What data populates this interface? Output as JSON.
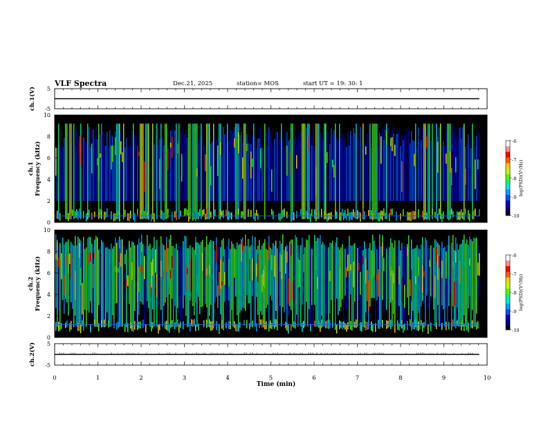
{
  "header": {
    "title": "VLF Spectra",
    "date": "Dec.21, 2025",
    "station": "station= MOS",
    "start": "start  UT  =    19: 30: 1"
  },
  "chart_data": {
    "type": "heatmap",
    "xlabel": "Time  (min)",
    "xlim": [
      0,
      10
    ],
    "x_ticks": [
      "0",
      "1",
      "2",
      "3",
      "4",
      "5",
      "6",
      "7",
      "8",
      "9",
      "10"
    ],
    "data_end_min": 9.82,
    "panels": [
      {
        "id": "ch1v",
        "kind": "waveform",
        "ylabel": "ch.1(V)",
        "y_ticks": [
          "5",
          "-5"
        ],
        "ylim": [
          -5,
          5
        ],
        "level": 0
      },
      {
        "id": "ch1",
        "kind": "spectrogram",
        "ylabel": "ch.1\nFrequency  (kHz)",
        "ylim": [
          0,
          10
        ],
        "y_ticks": [
          "0",
          "2",
          "4",
          "6",
          "8",
          "10"
        ],
        "seed": 7,
        "style": "sparse",
        "colorbar": {
          "label": "log(PSD)(V²/Hz)",
          "ticks": [
            "-6",
            "-7",
            "-8",
            "-9",
            "-10"
          ],
          "range": [
            -10,
            -6
          ]
        }
      },
      {
        "id": "ch2",
        "kind": "spectrogram",
        "ylabel": "ch.2\nFrequency  (kHz)",
        "ylim": [
          0,
          10
        ],
        "y_ticks": [
          "0",
          "2",
          "4",
          "6",
          "8",
          "10"
        ],
        "seed": 19,
        "style": "dense",
        "colorbar": {
          "label": "log(PSD)(V²/Hz)",
          "ticks": [
            "-6",
            "-7",
            "-8",
            "-9",
            "-10"
          ],
          "range": [
            -10,
            -6
          ]
        }
      },
      {
        "id": "ch2v",
        "kind": "waveform",
        "ylabel": "ch.2(V)",
        "y_ticks": [
          "5",
          "-5"
        ],
        "ylim": [
          -5,
          5
        ],
        "level": 0
      }
    ]
  }
}
